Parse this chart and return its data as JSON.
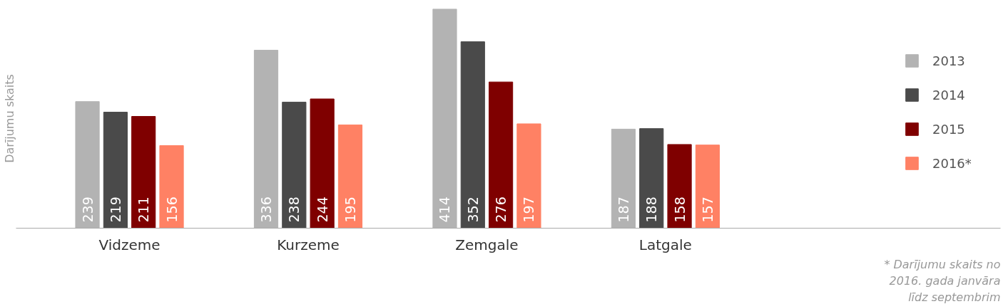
{
  "chart_data": {
    "type": "bar",
    "ylabel": "Darījumu skaits",
    "categories": [
      "Vidzeme",
      "Kurzeme",
      "Zemgale",
      "Latgale"
    ],
    "series": [
      {
        "name": "2013",
        "color": "#b3b3b3",
        "values": [
          239,
          336,
          414,
          187
        ]
      },
      {
        "name": "2014",
        "color": "#4a4a4a",
        "values": [
          219,
          238,
          352,
          188
        ]
      },
      {
        "name": "2015",
        "color": "#7f0000",
        "values": [
          211,
          244,
          276,
          158
        ]
      },
      {
        "name": "2016*",
        "color": "#ff8164",
        "values": [
          156,
          195,
          197,
          157
        ]
      }
    ],
    "data_labels": true,
    "grid": false,
    "legend": "right",
    "annotations": [
      "* Darījumu skaits no 2016. gada janvāra līdz septembrim"
    ]
  }
}
